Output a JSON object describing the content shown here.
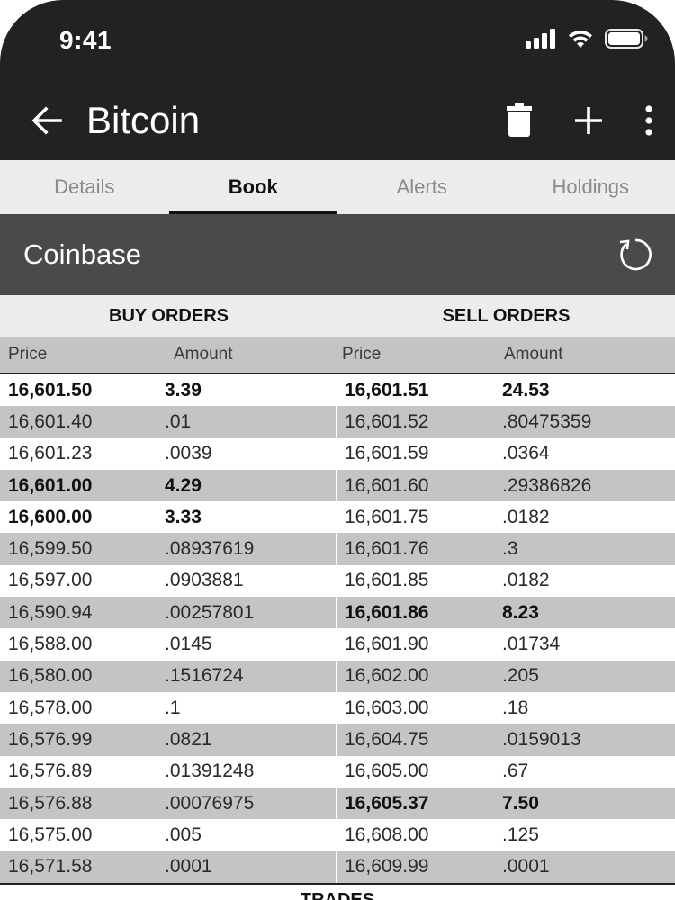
{
  "status": {
    "time": "9:41"
  },
  "appbar": {
    "title": "Bitcoin"
  },
  "tabs": [
    {
      "label": "Details",
      "active": false
    },
    {
      "label": "Book",
      "active": true
    },
    {
      "label": "Alerts",
      "active": false
    },
    {
      "label": "Holdings",
      "active": false
    }
  ],
  "exchange": {
    "name": "Coinbase"
  },
  "book": {
    "buy_title": "BUY ORDERS",
    "sell_title": "SELL ORDERS",
    "col_price": "Price",
    "col_amount": "Amount",
    "buy": [
      {
        "price": "16,601.50",
        "amount": "3.39",
        "bold": true
      },
      {
        "price": "16,601.40",
        "amount": ".01",
        "bold": false
      },
      {
        "price": "16,601.23",
        "amount": ".0039",
        "bold": false
      },
      {
        "price": "16,601.00",
        "amount": "4.29",
        "bold": true
      },
      {
        "price": "16,600.00",
        "amount": "3.33",
        "bold": true
      },
      {
        "price": "16,599.50",
        "amount": ".08937619",
        "bold": false
      },
      {
        "price": "16,597.00",
        "amount": ".0903881",
        "bold": false
      },
      {
        "price": "16,590.94",
        "amount": ".00257801",
        "bold": false
      },
      {
        "price": "16,588.00",
        "amount": ".0145",
        "bold": false
      },
      {
        "price": "16,580.00",
        "amount": ".1516724",
        "bold": false
      },
      {
        "price": "16,578.00",
        "amount": ".1",
        "bold": false
      },
      {
        "price": "16,576.99",
        "amount": ".0821",
        "bold": false
      },
      {
        "price": "16,576.89",
        "amount": ".01391248",
        "bold": false
      },
      {
        "price": "16,576.88",
        "amount": ".00076975",
        "bold": false
      },
      {
        "price": "16,575.00",
        "amount": ".005",
        "bold": false
      },
      {
        "price": "16,571.58",
        "amount": ".0001",
        "bold": false
      }
    ],
    "sell": [
      {
        "price": "16,601.51",
        "amount": "24.53",
        "bold": true
      },
      {
        "price": "16,601.52",
        "amount": ".80475359",
        "bold": false
      },
      {
        "price": "16,601.59",
        "amount": ".0364",
        "bold": false
      },
      {
        "price": "16,601.60",
        "amount": ".29386826",
        "bold": false
      },
      {
        "price": "16,601.75",
        "amount": ".0182",
        "bold": false
      },
      {
        "price": "16,601.76",
        "amount": ".3",
        "bold": false
      },
      {
        "price": "16,601.85",
        "amount": ".0182",
        "bold": false
      },
      {
        "price": "16,601.86",
        "amount": "8.23",
        "bold": true
      },
      {
        "price": "16,601.90",
        "amount": ".01734",
        "bold": false
      },
      {
        "price": "16,602.00",
        "amount": ".205",
        "bold": false
      },
      {
        "price": "16,603.00",
        "amount": ".18",
        "bold": false
      },
      {
        "price": "16,604.75",
        "amount": ".0159013",
        "bold": false
      },
      {
        "price": "16,605.00",
        "amount": ".67",
        "bold": false
      },
      {
        "price": "16,605.37",
        "amount": "7.50",
        "bold": true
      },
      {
        "price": "16,608.00",
        "amount": ".125",
        "bold": false
      },
      {
        "price": "16,609.99",
        "amount": ".0001",
        "bold": false
      }
    ]
  },
  "trades": {
    "title": "TRADES"
  },
  "colors": {
    "bar": "#222222",
    "exchange_bar": "#4a4a4a",
    "stripe": "#c4c4c4",
    "tab_bg": "#ececec"
  },
  "icons": {
    "back": "arrow-left-icon",
    "delete": "trash-icon",
    "add": "plus-icon",
    "more": "more-vert-icon",
    "refresh": "refresh-icon"
  }
}
